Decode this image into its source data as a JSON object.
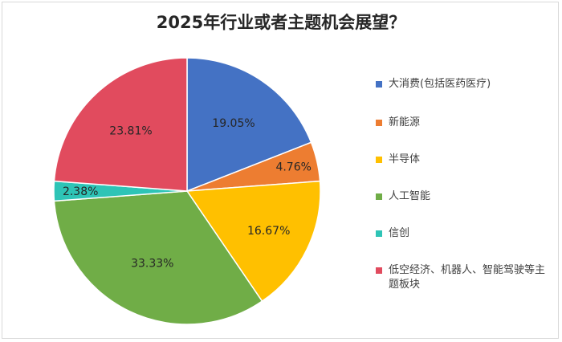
{
  "chart_data": {
    "type": "pie",
    "title": "2025年行业或者主题机会展望？",
    "slices": [
      {
        "label": "大消费(包括医药医疗)",
        "value": 19.05,
        "value_label": "19.05%",
        "color": "#4472C4"
      },
      {
        "label": "新能源",
        "value": 4.76,
        "value_label": "4.76%",
        "color": "#ED7D31"
      },
      {
        "label": "半导体",
        "value": 16.67,
        "value_label": "16.67%",
        "color": "#FFC000"
      },
      {
        "label": "人工智能",
        "value": 33.33,
        "value_label": "33.33%",
        "color": "#70AD47"
      },
      {
        "label": "信创",
        "value": 2.38,
        "value_label": "2.38%",
        "color": "#2EC4B6"
      },
      {
        "label": "低空经济、机器人、智能驾驶等主题板块",
        "value": 23.81,
        "value_label": "23.81%",
        "color": "#E14B5E"
      }
    ],
    "legend_position": "right"
  }
}
